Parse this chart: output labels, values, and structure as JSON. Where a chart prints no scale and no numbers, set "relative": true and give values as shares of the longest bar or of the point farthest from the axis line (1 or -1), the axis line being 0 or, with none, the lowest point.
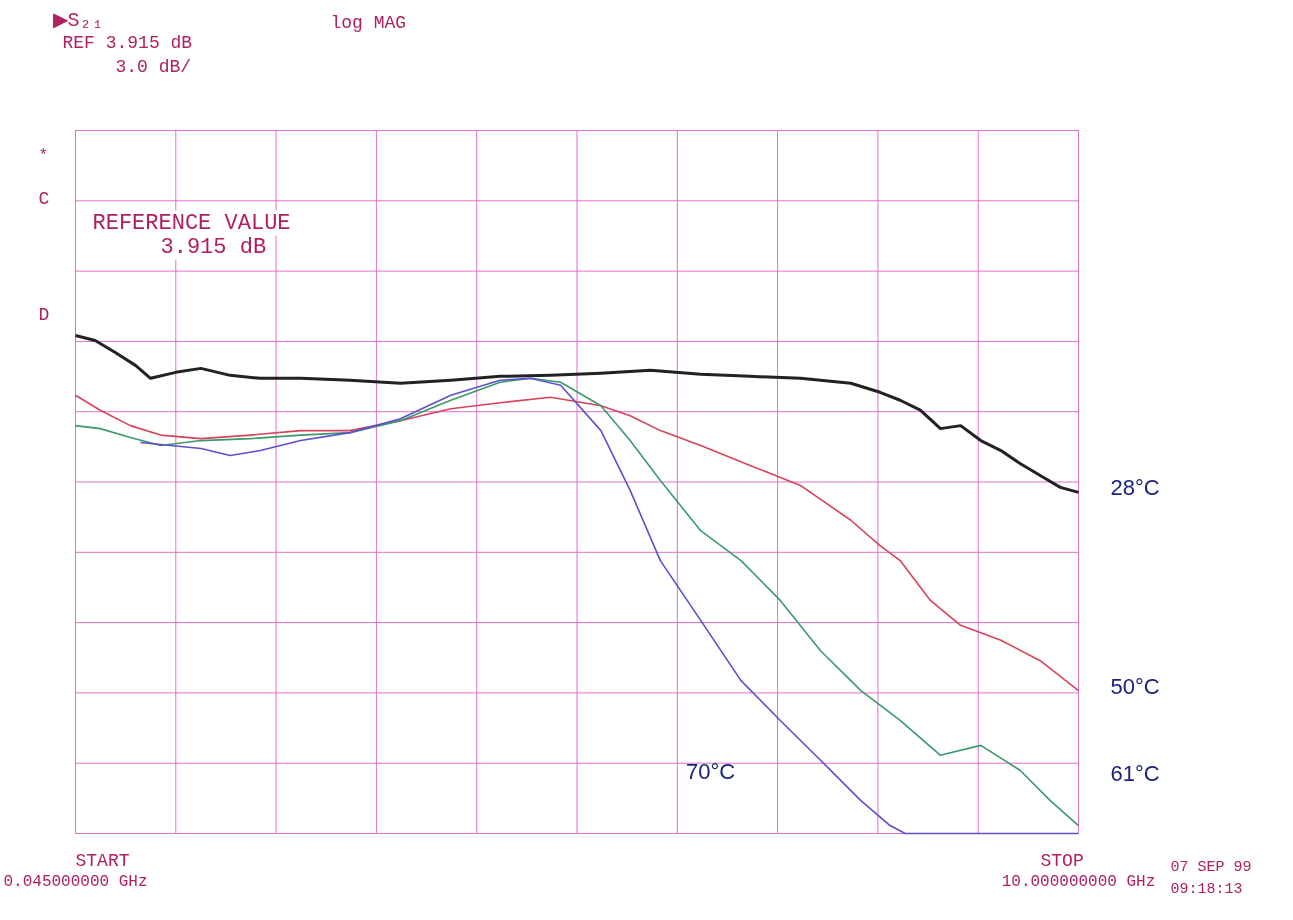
{
  "chart_data": {
    "type": "line",
    "relative": true,
    "grid": true,
    "marker": "none",
    "line_style": "solid",
    "xlim": [
      0.045,
      10
    ],
    "xticks": [
      {
        "value": 0.045,
        "label": "0.045000000 GHz"
      },
      {
        "value": 1.0405,
        "label": null
      },
      {
        "value": 2.036,
        "label": null
      },
      {
        "value": 3.0315,
        "label": null
      },
      {
        "value": 4.027,
        "label": null
      },
      {
        "value": 5.0225,
        "label": null
      },
      {
        "value": 6.018,
        "label": null
      },
      {
        "value": 7.0135,
        "label": null
      },
      {
        "value": 8.009,
        "label": null
      },
      {
        "value": 9.0045,
        "label": null
      },
      {
        "value": 10,
        "label": "10.000000000 GHz"
      }
    ],
    "annotations": [
      "▶S₂₁",
      "log MAG",
      "REF 3.915 dB",
      "3.0 dB/",
      "*",
      "C",
      "D",
      "REFERENCE VALUE",
      "3.915 dB",
      "START",
      "STOP",
      "07 SEP 99",
      "09:18:13"
    ],
    "series": [
      {
        "name": "28°C",
        "color": "#222222",
        "x": [
          0.045,
          0.24,
          0.44,
          0.64,
          0.79,
          1.04,
          1.29,
          1.58,
          1.88,
          2.28,
          2.77,
          3.27,
          3.77,
          4.26,
          4.76,
          5.26,
          5.75,
          6.25,
          6.74,
          7.24,
          7.74,
          8.03,
          8.23,
          8.43,
          8.63,
          8.83,
          9.03,
          9.23,
          9.42,
          9.62,
          9.82,
          10
        ],
        "values": [
          1.0,
          0.99,
          0.966,
          0.94,
          0.914,
          0.926,
          0.934,
          0.92,
          0.914,
          0.914,
          0.91,
          0.904,
          0.91,
          0.918,
          0.92,
          0.924,
          0.93,
          0.922,
          0.918,
          0.914,
          0.904,
          0.886,
          0.87,
          0.85,
          0.813,
          0.819,
          0.789,
          0.769,
          0.743,
          0.719,
          0.695,
          0.685
        ]
      },
      {
        "name": "50°C",
        "color": "#d9435a",
        "x": [
          0.045,
          0.29,
          0.59,
          0.89,
          1.29,
          1.78,
          2.28,
          2.77,
          3.27,
          3.77,
          4.26,
          4.76,
          5.26,
          5.55,
          5.85,
          6.25,
          6.74,
          7.24,
          7.74,
          8.03,
          8.23,
          8.53,
          8.83,
          9.23,
          9.62,
          10
        ],
        "values": [
          0.88,
          0.85,
          0.819,
          0.8,
          0.793,
          0.8,
          0.809,
          0.809,
          0.829,
          0.853,
          0.865,
          0.876,
          0.859,
          0.839,
          0.809,
          0.779,
          0.739,
          0.699,
          0.629,
          0.578,
          0.548,
          0.468,
          0.418,
          0.388,
          0.347,
          0.287
        ]
      },
      {
        "name": "61°C",
        "color": "#3a9a6a",
        "x": [
          0.045,
          0.29,
          0.59,
          0.89,
          1.29,
          1.78,
          2.28,
          2.77,
          3.27,
          3.77,
          4.26,
          4.56,
          4.86,
          5.26,
          5.55,
          5.85,
          6.25,
          6.65,
          7.04,
          7.44,
          7.84,
          8.23,
          8.63,
          9.03,
          9.42,
          9.72,
          10
        ],
        "values": [
          0.819,
          0.813,
          0.795,
          0.779,
          0.789,
          0.793,
          0.8,
          0.805,
          0.829,
          0.87,
          0.906,
          0.914,
          0.906,
          0.859,
          0.789,
          0.709,
          0.608,
          0.548,
          0.468,
          0.367,
          0.287,
          0.227,
          0.157,
          0.177,
          0.127,
          0.066,
          0.016
        ]
      },
      {
        "name": "70°C",
        "color": "#5a50d0",
        "x": [
          0.69,
          0.99,
          1.29,
          1.58,
          1.88,
          2.28,
          2.77,
          3.27,
          3.77,
          4.26,
          4.56,
          4.86,
          5.26,
          5.55,
          5.85,
          6.25,
          6.65,
          7.04,
          7.44,
          7.84,
          8.13,
          8.28,
          10
        ],
        "values": [
          0.785,
          0.779,
          0.773,
          0.759,
          0.769,
          0.789,
          0.805,
          0.833,
          0.88,
          0.91,
          0.914,
          0.9,
          0.809,
          0.689,
          0.548,
          0.428,
          0.307,
          0.227,
          0.147,
          0.066,
          0.016,
          0.0,
          0.0
        ]
      }
    ]
  }
}
